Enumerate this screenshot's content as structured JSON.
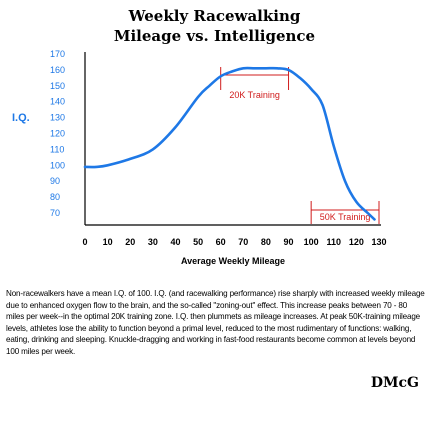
{
  "chart_data": {
    "type": "line",
    "title": [
      "Weekly Racewalking",
      "Mileage vs. Intelligence"
    ],
    "xlabel": "Average Weekly Mileage",
    "ylabel": "I.Q.",
    "xlim": [
      0,
      130
    ],
    "ylim": [
      65,
      170
    ],
    "xticks": [
      0,
      10,
      20,
      30,
      40,
      50,
      60,
      70,
      80,
      90,
      100,
      110,
      120,
      130
    ],
    "yticks": [
      70,
      80,
      90,
      100,
      110,
      120,
      130,
      140,
      150,
      160,
      170
    ],
    "series": [
      {
        "color": "#1e78e6",
        "x": [
          0,
          5,
          10,
          20,
          30,
          40,
          50,
          55,
          60,
          65,
          70,
          75,
          80,
          85,
          90,
          95,
          100,
          105,
          110,
          115,
          120,
          125,
          128
        ],
        "y": [
          99,
          99,
          100,
          104,
          110,
          124,
          143,
          150,
          156,
          159,
          161,
          161,
          161,
          161,
          160,
          155,
          148,
          138,
          112,
          90,
          77,
          70,
          66
        ]
      }
    ],
    "annotations": [
      {
        "label": "20K Training",
        "x_start": 60,
        "x_end": 90,
        "color": "#d01c1c",
        "position": "top"
      },
      {
        "label": "50K Training",
        "x_start": 100,
        "x_end": 130,
        "color": "#d01c1c",
        "position": "bottom"
      }
    ]
  },
  "caption": "Non-racewalkers have a mean I.Q. of 100. I.Q. (and racewalking performance) rise sharply with increased weekly mileage due to enhanced oxygen flow to the brain, and the so-called \"zoning-out\" effect. This increase peaks between 70 - 80 miles per week--in the optimal 20K training zone. I.Q. then plummets as mileage increases. At peak 50K-training mileage levels, athletes lose the ability to function beyond a primal level, reduced to the most rudimentary of functions: walking, eating, drinking and sleeping. Knuckle-dragging and working in fast-food restaurants become common at levels beyond 100 miles per week.",
  "signature": "DMcG"
}
